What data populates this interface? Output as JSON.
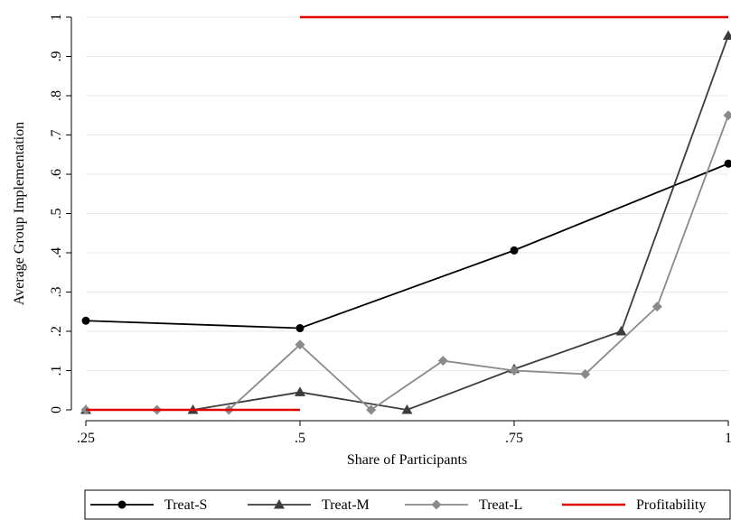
{
  "chart_data": {
    "type": "line",
    "xlabel": "Share of Participants",
    "ylabel": "Average Group Implementation",
    "xlim": [
      0.25,
      1
    ],
    "ylim": [
      0,
      1
    ],
    "x_ticks": [
      {
        "value": 0.25,
        "label": ".25"
      },
      {
        "value": 0.5,
        "label": ".5"
      },
      {
        "value": 0.75,
        "label": ".75"
      },
      {
        "value": 1,
        "label": "1"
      }
    ],
    "y_ticks": [
      {
        "value": 0,
        "label": "0"
      },
      {
        "value": 0.1,
        "label": ".1"
      },
      {
        "value": 0.2,
        "label": ".2"
      },
      {
        "value": 0.3,
        "label": ".3"
      },
      {
        "value": 0.4,
        "label": ".4"
      },
      {
        "value": 0.5,
        "label": ".5"
      },
      {
        "value": 0.6,
        "label": ".6"
      },
      {
        "value": 0.7,
        "label": ".7"
      },
      {
        "value": 0.8,
        "label": ".8"
      },
      {
        "value": 0.9,
        "label": ".9"
      },
      {
        "value": 1,
        "label": "1"
      }
    ],
    "grid": "horizontal",
    "legend_position": "bottom",
    "series": [
      {
        "name": "Treat-S",
        "marker": "circle",
        "color": "#000000",
        "points": [
          [
            0.25,
            0.227
          ],
          [
            0.5,
            0.208
          ],
          [
            0.75,
            0.406
          ],
          [
            1,
            0.627
          ]
        ]
      },
      {
        "name": "Treat-M",
        "marker": "triangle",
        "color": "#3c3c3c",
        "points": [
          [
            0.25,
            0
          ],
          [
            0.375,
            0
          ],
          [
            0.5,
            0.045
          ],
          [
            0.625,
            0
          ],
          [
            0.75,
            0.104
          ],
          [
            0.875,
            0.2
          ],
          [
            1,
            0.953
          ]
        ]
      },
      {
        "name": "Treat-L",
        "marker": "diamond",
        "color": "#8a8a8a",
        "points": [
          [
            0.25,
            0
          ],
          [
            0.333,
            0
          ],
          [
            0.417,
            0
          ],
          [
            0.5,
            0.166
          ],
          [
            0.583,
            0
          ],
          [
            0.667,
            0.125
          ],
          [
            0.75,
            0.1
          ],
          [
            0.833,
            0.091
          ],
          [
            0.917,
            0.263
          ],
          [
            1,
            0.75
          ]
        ]
      },
      {
        "name": "Profitability",
        "marker": "none",
        "color": "#e00000",
        "segments": [
          [
            [
              0.25,
              0
            ],
            [
              0.5,
              0
            ]
          ],
          [
            [
              0.5,
              1
            ],
            [
              1,
              1
            ]
          ]
        ]
      }
    ]
  }
}
